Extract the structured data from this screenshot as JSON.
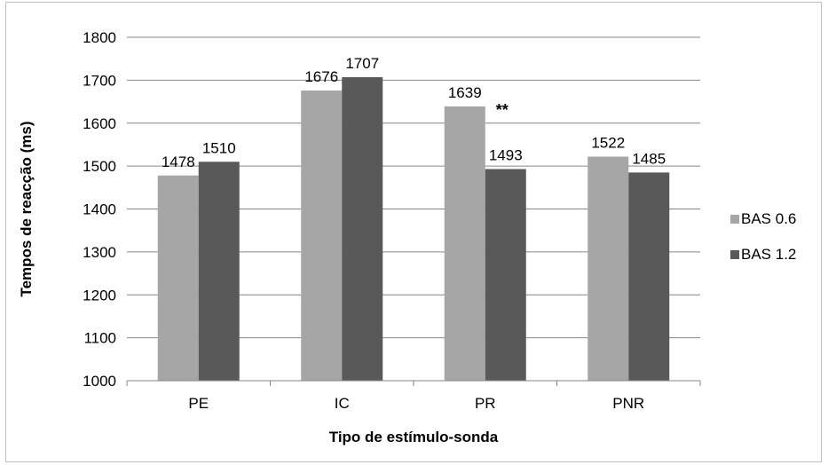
{
  "chart_data": {
    "type": "bar",
    "title": "",
    "xlabel": "Tipo de estímulo-sonda",
    "ylabel": "Tempos de reacção (ms)",
    "categories": [
      "PE",
      "IC",
      "PR",
      "PNR"
    ],
    "series": [
      {
        "name": "BAS 0.6",
        "color": "#a6a6a6",
        "values": [
          1478,
          1676,
          1639,
          1522
        ]
      },
      {
        "name": "BAS 1.2",
        "color": "#595959",
        "values": [
          1510,
          1707,
          1493,
          1485
        ]
      }
    ],
    "ylim": [
      1000,
      1800
    ],
    "yticks": [
      1000,
      1100,
      1200,
      1300,
      1400,
      1500,
      1600,
      1700,
      1800
    ],
    "grid": true,
    "legend": "right",
    "data_labels": true,
    "annotations": [
      {
        "text": "**",
        "category": "PR"
      }
    ]
  }
}
